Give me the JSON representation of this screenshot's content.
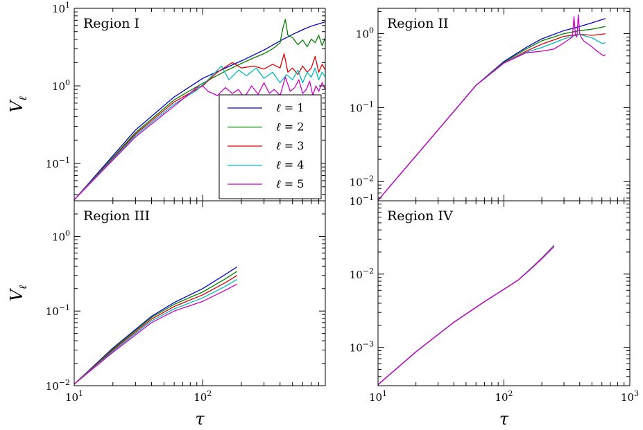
{
  "chart_data": [
    {
      "type": "line",
      "title": "Region I",
      "xlabel": "",
      "ylabel": "V_ℓ",
      "xscale": "log",
      "yscale": "log",
      "xlim": [
        10,
        900
      ],
      "ylim": [
        0.033,
        10
      ],
      "yticks": [
        0.1,
        1,
        10
      ],
      "ytick_labels": [
        [
          "10",
          "−1"
        ],
        [
          "10",
          "0"
        ],
        [
          "10",
          "1"
        ]
      ],
      "xticks": [],
      "xtick_labels": [],
      "legend": {
        "placement": "center-right"
      },
      "series": [
        {
          "name": "ℓ = 1",
          "color": "#0000cc",
          "x": [
            10,
            30,
            60,
            100,
            200,
            300,
            400,
            500,
            600,
            700,
            800,
            900
          ],
          "y": [
            0.034,
            0.27,
            0.72,
            1.25,
            2.1,
            2.9,
            3.8,
            4.6,
            5.3,
            5.9,
            6.3,
            6.7
          ]
        },
        {
          "name": "ℓ = 2",
          "color": "#008000",
          "x": [
            10,
            30,
            60,
            100,
            150,
            200,
            250,
            300,
            350,
            400,
            420,
            440,
            460,
            500,
            550,
            600,
            650,
            700,
            750,
            800,
            850,
            900
          ],
          "y": [
            0.034,
            0.25,
            0.66,
            1.08,
            1.55,
            1.95,
            2.3,
            2.6,
            3.0,
            3.6,
            5.5,
            7.2,
            4.5,
            4.2,
            3.4,
            3.9,
            3.2,
            4.0,
            3.6,
            4.5,
            3.3,
            4.2
          ]
        },
        {
          "name": "ℓ = 3",
          "color": "#dd0000",
          "x": [
            10,
            30,
            60,
            100,
            130,
            170,
            200,
            250,
            300,
            350,
            400,
            430,
            460,
            500,
            550,
            600,
            650,
            700,
            750,
            800,
            850,
            900
          ],
          "y": [
            0.034,
            0.24,
            0.62,
            1.0,
            1.5,
            2.0,
            1.7,
            1.8,
            1.65,
            1.9,
            1.7,
            2.6,
            1.5,
            1.7,
            1.4,
            1.8,
            1.5,
            1.7,
            2.4,
            1.5,
            1.9,
            1.6
          ]
        },
        {
          "name": "ℓ = 4",
          "color": "#00bbbb",
          "x": [
            10,
            30,
            60,
            90,
            110,
            140,
            160,
            190,
            220,
            260,
            300,
            350,
            400,
            450,
            500,
            550,
            600,
            650,
            700,
            750,
            800,
            850,
            900
          ],
          "y": [
            0.034,
            0.23,
            0.58,
            0.88,
            1.2,
            1.8,
            1.2,
            1.6,
            1.35,
            1.7,
            1.25,
            1.5,
            1.1,
            1.4,
            1.2,
            1.6,
            1.1,
            1.5,
            1.3,
            1.7,
            1.2,
            1.5,
            1.3
          ]
        },
        {
          "name": "ℓ = 5",
          "color": "#cc00cc",
          "x": [
            10,
            30,
            60,
            90,
            100,
            110,
            130,
            150,
            170,
            190,
            210,
            240,
            270,
            300,
            330,
            360,
            400,
            440,
            480,
            520,
            560,
            600,
            640,
            680,
            720,
            760,
            800,
            850,
            900
          ],
          "y": [
            0.034,
            0.22,
            0.55,
            0.95,
            1.0,
            0.85,
            0.75,
            0.95,
            0.8,
            0.9,
            0.7,
            1.0,
            0.78,
            1.1,
            0.8,
            0.9,
            0.75,
            1.3,
            0.85,
            0.95,
            1.2,
            0.8,
            0.9,
            1.15,
            0.75,
            1.0,
            0.85,
            1.1,
            0.9
          ]
        }
      ]
    },
    {
      "type": "line",
      "title": "Region II",
      "xlabel": "",
      "ylabel": "",
      "xscale": "log",
      "yscale": "log",
      "xlim": [
        10,
        1000
      ],
      "ylim": [
        0.0055,
        2.2
      ],
      "yticks": [
        0.01,
        0.1,
        1
      ],
      "ytick_labels": [
        [
          "10",
          "−2"
        ],
        [
          "10",
          "−1"
        ],
        [
          "10",
          "0"
        ]
      ],
      "xticks": [],
      "xtick_labels": [],
      "series": [
        {
          "name": "ℓ = 1",
          "color": "#0000cc",
          "x": [
            10,
            30,
            60,
            100,
            150,
            200,
            300,
            400,
            500,
            640
          ],
          "y": [
            0.0056,
            0.05,
            0.2,
            0.42,
            0.65,
            0.85,
            1.1,
            1.25,
            1.4,
            1.6
          ]
        },
        {
          "name": "ℓ = 2",
          "color": "#008000",
          "x": [
            10,
            30,
            60,
            100,
            150,
            200,
            300,
            400,
            500,
            640
          ],
          "y": [
            0.0056,
            0.05,
            0.2,
            0.41,
            0.62,
            0.8,
            1.0,
            1.1,
            1.15,
            1.25
          ]
        },
        {
          "name": "ℓ = 3",
          "color": "#dd0000",
          "x": [
            10,
            30,
            60,
            100,
            150,
            200,
            300,
            400,
            500,
            600,
            640
          ],
          "y": [
            0.0056,
            0.05,
            0.2,
            0.4,
            0.58,
            0.72,
            0.92,
            0.98,
            0.95,
            0.98,
            1.0
          ]
        },
        {
          "name": "ℓ = 4",
          "color": "#00bbbb",
          "x": [
            10,
            30,
            60,
            100,
            150,
            200,
            300,
            400,
            450,
            500,
            600,
            640
          ],
          "y": [
            0.0056,
            0.05,
            0.2,
            0.4,
            0.56,
            0.65,
            0.85,
            0.98,
            0.92,
            0.88,
            0.74,
            0.75
          ]
        },
        {
          "name": "ℓ = 5",
          "color": "#cc00cc",
          "x": [
            10,
            30,
            60,
            100,
            150,
            200,
            250,
            300,
            350,
            360,
            370,
            380,
            390,
            400,
            410,
            430,
            480,
            550,
            620,
            640
          ],
          "y": [
            0.0056,
            0.05,
            0.2,
            0.4,
            0.55,
            0.58,
            0.62,
            0.75,
            0.9,
            1.7,
            0.95,
            0.9,
            1.8,
            1.0,
            0.9,
            0.8,
            0.7,
            0.58,
            0.5,
            0.52
          ]
        }
      ]
    },
    {
      "type": "line",
      "title": "Region III",
      "xlabel": "τ",
      "ylabel": "V_ℓ",
      "xscale": "log",
      "yscale": "log",
      "xlim": [
        10,
        900
      ],
      "ylim": [
        0.01,
        3.0
      ],
      "yticks": [
        0.01,
        0.1,
        1
      ],
      "ytick_labels": [
        [
          "10",
          "−2"
        ],
        [
          "10",
          "−1"
        ],
        [
          "10",
          "0"
        ]
      ],
      "xticks": [
        10,
        100
      ],
      "xtick_labels": [
        [
          "10",
          "1"
        ],
        [
          "10",
          "2"
        ]
      ],
      "series": [
        {
          "name": "ℓ = 1",
          "color": "#0000cc",
          "x": [
            10,
            20,
            40,
            60,
            100,
            150,
            185
          ],
          "y": [
            0.0105,
            0.032,
            0.085,
            0.13,
            0.2,
            0.31,
            0.39
          ]
        },
        {
          "name": "ℓ = 2",
          "color": "#008000",
          "x": [
            10,
            20,
            40,
            60,
            100,
            150,
            185
          ],
          "y": [
            0.0105,
            0.031,
            0.082,
            0.123,
            0.18,
            0.27,
            0.34
          ]
        },
        {
          "name": "ℓ = 3",
          "color": "#dd0000",
          "x": [
            10,
            20,
            40,
            60,
            100,
            150,
            185
          ],
          "y": [
            0.0105,
            0.03,
            0.078,
            0.115,
            0.165,
            0.24,
            0.3
          ]
        },
        {
          "name": "ℓ = 4",
          "color": "#00bbbb",
          "x": [
            10,
            20,
            40,
            60,
            100,
            150,
            185
          ],
          "y": [
            0.0105,
            0.029,
            0.074,
            0.107,
            0.15,
            0.215,
            0.265
          ]
        },
        {
          "name": "ℓ = 5",
          "color": "#cc00cc",
          "x": [
            10,
            20,
            40,
            60,
            100,
            150,
            185
          ],
          "y": [
            0.0105,
            0.028,
            0.07,
            0.1,
            0.135,
            0.19,
            0.23
          ]
        }
      ]
    },
    {
      "type": "line",
      "title": "Region IV",
      "xlabel": "τ",
      "ylabel": "",
      "xscale": "log",
      "yscale": "log",
      "xlim": [
        10,
        1000
      ],
      "ylim": [
        0.0003,
        0.1
      ],
      "yticks": [
        0.001,
        0.01,
        0.1
      ],
      "ytick_labels": [
        [
          "10",
          "−3"
        ],
        [
          "10",
          "−2"
        ],
        [
          "10",
          "−1"
        ]
      ],
      "xticks": [
        10,
        100,
        1000
      ],
      "xtick_labels": [
        [
          "10",
          "1"
        ],
        [
          "10",
          "2"
        ],
        [
          "10",
          "3"
        ]
      ],
      "series": [
        {
          "name": "ℓ = 1",
          "color": "#0000cc",
          "x": [
            10,
            20,
            40,
            70,
            100,
            130,
            160,
            200,
            250
          ],
          "y": [
            0.00031,
            0.00087,
            0.0022,
            0.0042,
            0.0062,
            0.0083,
            0.0115,
            0.0165,
            0.0245
          ]
        },
        {
          "name": "ℓ = 2",
          "color": "#008000",
          "x": [
            10,
            20,
            40,
            70,
            100,
            130,
            160,
            200,
            250
          ],
          "y": [
            0.00031,
            0.00087,
            0.0022,
            0.0042,
            0.0062,
            0.0083,
            0.0115,
            0.0164,
            0.0243
          ]
        },
        {
          "name": "ℓ = 3",
          "color": "#dd0000",
          "x": [
            10,
            20,
            40,
            70,
            100,
            130,
            160,
            200,
            250
          ],
          "y": [
            0.00031,
            0.00087,
            0.0022,
            0.0042,
            0.0062,
            0.0083,
            0.0114,
            0.0163,
            0.0241
          ]
        },
        {
          "name": "ℓ = 4",
          "color": "#00bbbb",
          "x": [
            10,
            20,
            40,
            70,
            100,
            130,
            160,
            200,
            250
          ],
          "y": [
            0.00031,
            0.00087,
            0.0022,
            0.0042,
            0.0062,
            0.0083,
            0.0114,
            0.0162,
            0.0239
          ]
        },
        {
          "name": "ℓ = 5",
          "color": "#cc00cc",
          "x": [
            10,
            20,
            40,
            70,
            100,
            130,
            160,
            200,
            250
          ],
          "y": [
            0.00031,
            0.00087,
            0.0022,
            0.0042,
            0.0062,
            0.0083,
            0.0113,
            0.0161,
            0.0237
          ]
        }
      ]
    }
  ]
}
